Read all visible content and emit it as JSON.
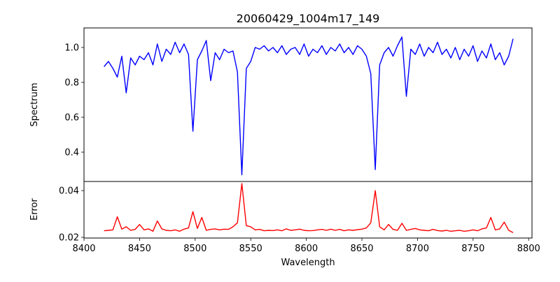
{
  "chart_data": {
    "type": "line",
    "title": "20060429_1004m17_149",
    "xlabel": "Wavelength",
    "xlim": [
      8400,
      8803
    ],
    "xticks": [
      8400,
      8450,
      8500,
      8550,
      8600,
      8650,
      8700,
      8750,
      8800
    ],
    "xtick_labels": [
      "8400",
      "8450",
      "8500",
      "8550",
      "8600",
      "8650",
      "8700",
      "8750",
      "8800"
    ],
    "x": [
      8418,
      8422,
      8426,
      8430,
      8434,
      8438,
      8442,
      8446,
      8450,
      8454,
      8458,
      8462,
      8466,
      8470,
      8474,
      8478,
      8482,
      8486,
      8490,
      8494,
      8498,
      8502,
      8506,
      8510,
      8514,
      8518,
      8522,
      8526,
      8530,
      8534,
      8538,
      8542,
      8546,
      8550,
      8554,
      8558,
      8562,
      8566,
      8570,
      8574,
      8578,
      8582,
      8586,
      8590,
      8594,
      8598,
      8602,
      8606,
      8610,
      8614,
      8618,
      8622,
      8626,
      8630,
      8634,
      8638,
      8642,
      8646,
      8650,
      8654,
      8658,
      8662,
      8666,
      8670,
      8674,
      8678,
      8682,
      8686,
      8690,
      8694,
      8698,
      8702,
      8706,
      8710,
      8714,
      8718,
      8722,
      8726,
      8730,
      8734,
      8738,
      8742,
      8746,
      8750,
      8754,
      8758,
      8762,
      8766,
      8770,
      8774,
      8778,
      8782,
      8786
    ],
    "panels": [
      {
        "name": "spectrum",
        "ylabel": "Spectrum",
        "ylim": [
          0.232,
          1.112
        ],
        "yticks": [
          0.4,
          0.6,
          0.8,
          1.0
        ],
        "ytick_labels": [
          "0.4",
          "0.6",
          "0.8",
          "1.0"
        ],
        "color": "#0000ff",
        "values": [
          0.89,
          0.92,
          0.88,
          0.83,
          0.95,
          0.74,
          0.94,
          0.9,
          0.95,
          0.93,
          0.97,
          0.9,
          1.02,
          0.92,
          0.99,
          0.96,
          1.03,
          0.97,
          1.02,
          0.96,
          0.52,
          0.93,
          0.98,
          1.04,
          0.81,
          0.97,
          0.93,
          0.99,
          0.97,
          0.98,
          0.86,
          0.27,
          0.88,
          0.92,
          1.0,
          0.99,
          1.01,
          0.98,
          1.0,
          0.97,
          1.01,
          0.96,
          0.99,
          1.0,
          0.96,
          1.02,
          0.95,
          0.99,
          0.97,
          1.01,
          0.96,
          1.0,
          0.98,
          1.02,
          0.97,
          1.0,
          0.96,
          1.01,
          0.99,
          0.95,
          0.85,
          0.3,
          0.9,
          0.97,
          1.0,
          0.95,
          1.01,
          1.06,
          0.72,
          0.99,
          0.96,
          1.02,
          0.95,
          1.0,
          0.97,
          1.03,
          0.96,
          0.99,
          0.94,
          1.0,
          0.93,
          0.99,
          0.95,
          1.01,
          0.92,
          0.98,
          0.94,
          1.02,
          0.93,
          0.97,
          0.9,
          0.95,
          1.05
        ]
      },
      {
        "name": "error",
        "ylabel": "Error",
        "ylim": [
          0.0197,
          0.0439
        ],
        "yticks": [
          0.02,
          0.04
        ],
        "ytick_labels": [
          "0.02",
          "0.04"
        ],
        "color": "#ff0000",
        "values": [
          0.0228,
          0.023,
          0.0232,
          0.0288,
          0.0235,
          0.0245,
          0.023,
          0.0234,
          0.0255,
          0.0232,
          0.0236,
          0.0226,
          0.027,
          0.0236,
          0.023,
          0.0228,
          0.0232,
          0.0226,
          0.0235,
          0.024,
          0.031,
          0.0238,
          0.0285,
          0.023,
          0.0234,
          0.0236,
          0.0232,
          0.0235,
          0.0234,
          0.0245,
          0.0262,
          0.043,
          0.025,
          0.0245,
          0.0232,
          0.0234,
          0.0228,
          0.023,
          0.0229,
          0.0232,
          0.0228,
          0.0236,
          0.023,
          0.0232,
          0.0235,
          0.023,
          0.0228,
          0.0229,
          0.0232,
          0.0234,
          0.023,
          0.0235,
          0.023,
          0.0234,
          0.0228,
          0.0232,
          0.023,
          0.0233,
          0.0235,
          0.024,
          0.0262,
          0.04,
          0.0245,
          0.0232,
          0.0255,
          0.0234,
          0.023,
          0.026,
          0.023,
          0.0234,
          0.0238,
          0.0232,
          0.023,
          0.0228,
          0.0234,
          0.0229,
          0.0227,
          0.023,
          0.0226,
          0.0228,
          0.023,
          0.0226,
          0.0228,
          0.0232,
          0.0228,
          0.0236,
          0.024,
          0.0285,
          0.0232,
          0.0236,
          0.0265,
          0.023,
          0.022
        ]
      }
    ]
  }
}
